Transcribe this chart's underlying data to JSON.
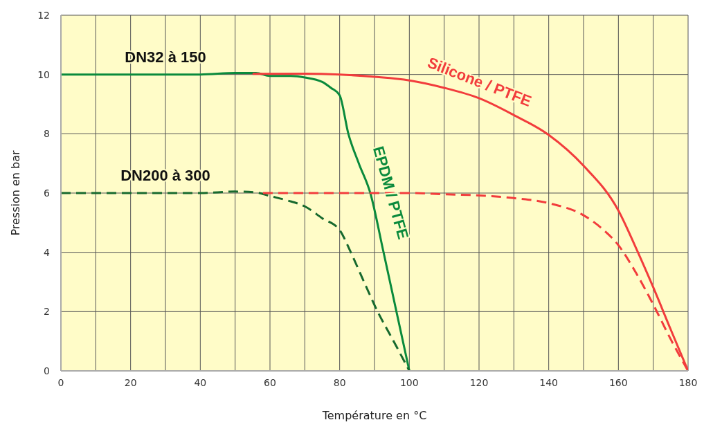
{
  "chart_data": {
    "type": "line",
    "xlabel": "Température en °C",
    "ylabel": "Pression en bar",
    "xlim": [
      0,
      180
    ],
    "ylim": [
      0,
      12
    ],
    "xticks": [
      0,
      {
        "value": 10,
        "label": null
      },
      20,
      {
        "value": 30,
        "label": null
      },
      40,
      {
        "value": 50,
        "label": null
      },
      60,
      {
        "value": 70,
        "label": null
      },
      80,
      {
        "value": 90,
        "label": null
      },
      100,
      {
        "value": 110,
        "label": null
      },
      120,
      {
        "value": 130,
        "label": null
      },
      140,
      {
        "value": 150,
        "label": null
      },
      160,
      {
        "value": 170,
        "label": null
      },
      180
    ],
    "yticks": [
      0,
      2,
      4,
      6,
      8,
      10,
      12
    ],
    "grid": true,
    "legend": false,
    "marker": "none",
    "series": [
      {
        "name": "EPDM / PTFE",
        "color": "#0a8a3c",
        "line_style": "solid",
        "x": [
          0,
          20,
          40,
          50,
          56,
          60,
          66,
          70,
          75,
          77.5,
          80,
          82.5,
          85.5,
          88.8,
          92.6,
          96.3,
          100
        ],
        "values": [
          10,
          10,
          10,
          10.05,
          10.05,
          9.95,
          9.95,
          9.9,
          9.75,
          9.55,
          9.3,
          8,
          7,
          6,
          4,
          2,
          0
        ]
      },
      {
        "color": "#17692e",
        "line_style": "dashed",
        "x": [
          0,
          20,
          40,
          50,
          56,
          60,
          65,
          70,
          75,
          80,
          83.2,
          87,
          90.9,
          95.5,
          100
        ],
        "values": [
          6,
          6,
          6,
          6.05,
          6.02,
          5.9,
          5.75,
          5.55,
          5.15,
          4.75,
          4,
          3,
          2,
          1,
          0
        ]
      },
      {
        "name": "Silicone / PTFE",
        "color": "#f23c3c",
        "line_style": "solid",
        "x": [
          55,
          70,
          80,
          90,
          100,
          110,
          120,
          130,
          140,
          150,
          160,
          165,
          170,
          175,
          180
        ],
        "values": [
          10.02,
          10.03,
          10,
          9.92,
          9.8,
          9.55,
          9.2,
          8.63,
          7.96,
          6.92,
          5.41,
          4.16,
          2.82,
          1.4,
          0
        ]
      },
      {
        "color": "#f23c3c",
        "line_style": "dashed",
        "x": [
          58,
          80,
          100,
          110,
          120,
          130,
          140,
          150,
          155,
          160,
          165,
          170,
          175,
          180
        ],
        "values": [
          6,
          6,
          6,
          5.96,
          5.92,
          5.83,
          5.66,
          5.25,
          4.83,
          4.24,
          3.32,
          2.24,
          1.07,
          0
        ]
      }
    ],
    "annotations": [
      {
        "text": "DN32 à 150",
        "x": 30,
        "y": 10
      },
      {
        "text": "DN200 à 300",
        "x": 30,
        "y": 6
      }
    ]
  }
}
